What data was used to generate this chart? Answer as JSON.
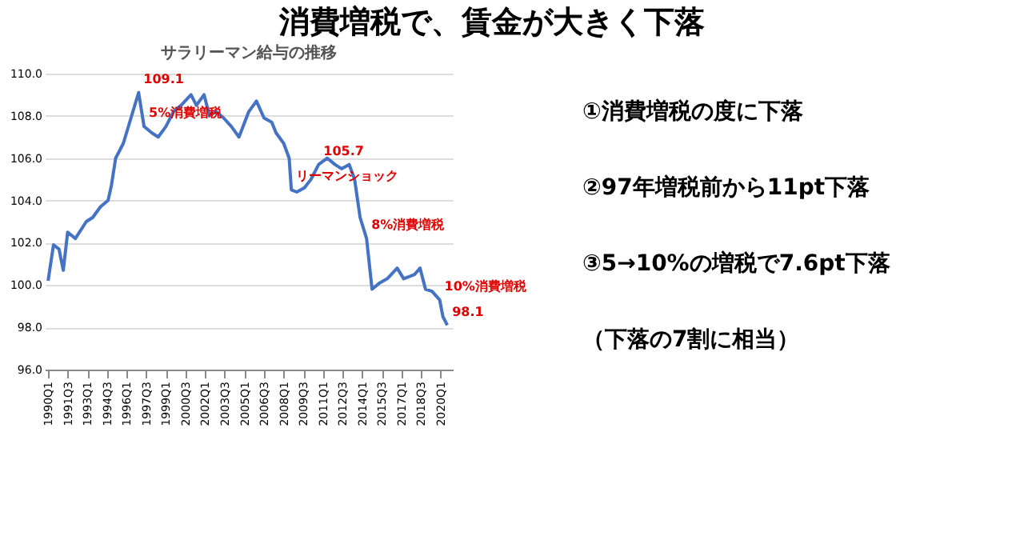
{
  "chart_data": {
    "type": "line",
    "title": "消費増税で、賃金が大きく下落",
    "subtitle": "サラリーマン給与の推移",
    "x": [
      "1990-01",
      "1990-06",
      "1990-11",
      "1991-03",
      "1991-07",
      "1992-02",
      "1992-12",
      "1993-06",
      "1994-01",
      "1994-08",
      "1994-11",
      "1995-03",
      "1995-10",
      "1996-05",
      "1996-12",
      "1997-05",
      "1997-12",
      "1998-06",
      "1999-01",
      "1999-08",
      "2000-03",
      "2000-12",
      "2001-05",
      "2001-12",
      "2002-05",
      "2002-11",
      "2003-06",
      "2004-01",
      "2004-08",
      "2005-05",
      "2005-12",
      "2006-07",
      "2007-02",
      "2007-06",
      "2008-01",
      "2008-06",
      "2008-08",
      "2009-01",
      "2009-08",
      "2010-02",
      "2010-09",
      "2011-05",
      "2011-12",
      "2012-06",
      "2013-01",
      "2013-06",
      "2013-11",
      "2014-05",
      "2014-10",
      "2015-05",
      "2015-12",
      "2016-09",
      "2017-03",
      "2018-01",
      "2018-06",
      "2018-11",
      "2019-05",
      "2019-12",
      "2020-03",
      "2020-07"
    ],
    "series": [
      {
        "color": "#4472c4",
        "values": [
          100.2,
          101.9,
          101.7,
          100.7,
          102.5,
          102.2,
          103.0,
          103.2,
          103.7,
          104.0,
          104.7,
          106.0,
          106.7,
          107.9,
          109.1,
          107.5,
          107.2,
          107.0,
          107.5,
          108.2,
          108.5,
          109.0,
          108.5,
          109.0,
          108.0,
          108.2,
          107.9,
          107.5,
          107.0,
          108.2,
          108.7,
          107.9,
          107.7,
          107.2,
          106.7,
          106.0,
          104.5,
          104.4,
          104.6,
          105.0,
          105.7,
          106.0,
          105.7,
          105.5,
          105.7,
          105.0,
          103.2,
          102.2,
          99.8,
          100.1,
          100.3,
          100.8,
          100.3,
          100.5,
          100.8,
          99.8,
          99.7,
          99.3,
          98.5,
          98.1
        ]
      }
    ],
    "xlim": [
      "1989-10",
      "2020-12"
    ],
    "xticks": [
      {
        "value": "1990-01",
        "label": "1990Q1"
      },
      {
        "value": "1991-07",
        "label": "1991Q3"
      },
      {
        "value": "1993-01",
        "label": "1993Q1"
      },
      {
        "value": "1994-07",
        "label": "1994Q3"
      },
      {
        "value": "1996-01",
        "label": "1996Q1"
      },
      {
        "value": "1997-07",
        "label": "1997Q3"
      },
      {
        "value": "1999-01",
        "label": "1999Q1"
      },
      {
        "value": "2000-07",
        "label": "2000Q3"
      },
      {
        "value": "2002-01",
        "label": "2002Q1"
      },
      {
        "value": "2003-07",
        "label": "2003Q3"
      },
      {
        "value": "2005-01",
        "label": "2005Q1"
      },
      {
        "value": "2006-07",
        "label": "2006Q3"
      },
      {
        "value": "2008-01",
        "label": "2008Q1"
      },
      {
        "value": "2009-07",
        "label": "2009Q3"
      },
      {
        "value": "2011-01",
        "label": "2011Q1"
      },
      {
        "value": "2012-07",
        "label": "2012Q3"
      },
      {
        "value": "2014-01",
        "label": "2014Q1"
      },
      {
        "value": "2015-07",
        "label": "2015Q3"
      },
      {
        "value": "2017-01",
        "label": "2017Q1"
      },
      {
        "value": "2018-07",
        "label": "2018Q3"
      },
      {
        "value": "2020-01",
        "label": "2020Q1"
      }
    ],
    "ylim": [
      96,
      110
    ],
    "yticks": [
      {
        "value": 96,
        "label": "96.0"
      },
      {
        "value": 98,
        "label": "98.0"
      },
      {
        "value": 100,
        "label": "100.0"
      },
      {
        "value": 102,
        "label": "102.0"
      },
      {
        "value": 104,
        "label": "104.0"
      },
      {
        "value": 106,
        "label": "106.0"
      },
      {
        "value": 108,
        "label": "108.0"
      },
      {
        "value": 110,
        "label": "110.0"
      }
    ],
    "grid": "y",
    "annotations": [
      {
        "text": "109.1",
        "x": "1996-12",
        "y": 109.1
      },
      {
        "text": "5%消費増税",
        "x": "1997-05",
        "y": 107.5
      },
      {
        "text": "リーマンショック",
        "x": "2008-08",
        "y": 104.5
      },
      {
        "text": "105.7",
        "x": "2010-09",
        "y": 105.7
      },
      {
        "text": "8%消費増税",
        "x": "2014-05",
        "y": 102.2
      },
      {
        "text": "10%消費増税",
        "x": "2019-12",
        "y": 99.3
      },
      {
        "text": "98.1",
        "x": "2020-07",
        "y": 98.1
      },
      "①消費増税の度に下落",
      "②97年増税前から11pt下落",
      "③5→10%の増税で7.6pt下落",
      "（下落の7割に相当）"
    ]
  }
}
